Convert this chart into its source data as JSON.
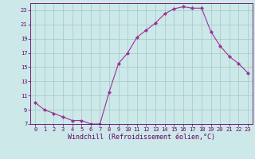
{
  "x": [
    0,
    1,
    2,
    3,
    4,
    5,
    6,
    7,
    8,
    9,
    10,
    11,
    12,
    13,
    14,
    15,
    16,
    17,
    18,
    19,
    20,
    21,
    22,
    23
  ],
  "y": [
    10.0,
    9.0,
    8.5,
    8.0,
    7.5,
    7.5,
    7.0,
    7.0,
    11.5,
    15.5,
    17.0,
    19.2,
    20.2,
    21.2,
    22.5,
    23.2,
    23.5,
    23.3,
    23.3,
    20.0,
    18.0,
    16.5,
    15.5,
    14.2
  ],
  "line_color": "#993399",
  "marker": "D",
  "marker_size": 2,
  "xlabel": "Windchill (Refroidissement éolien,°C)",
  "xlim_min": -0.5,
  "xlim_max": 23.5,
  "ylim_min": 7,
  "ylim_max": 24,
  "yticks": [
    7,
    9,
    11,
    13,
    15,
    17,
    19,
    21,
    23
  ],
  "xticks": [
    0,
    1,
    2,
    3,
    4,
    5,
    6,
    7,
    8,
    9,
    10,
    11,
    12,
    13,
    14,
    15,
    16,
    17,
    18,
    19,
    20,
    21,
    22,
    23
  ],
  "bg_color": "#cce8e8",
  "grid_color": "#b8d8d8",
  "font_color": "#660066",
  "tick_fontsize": 5,
  "xlabel_fontsize": 6
}
